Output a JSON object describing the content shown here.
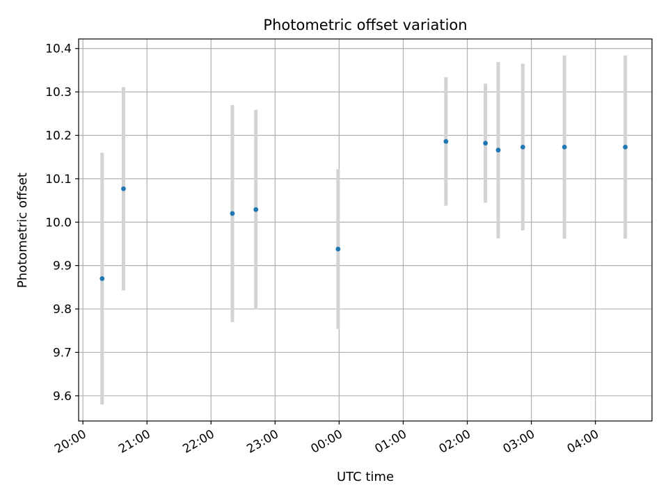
{
  "chart_data": {
    "type": "scatter",
    "title": "Photometric offset variation",
    "xlabel": "UTC time",
    "ylabel": "Photometric offset",
    "x_ticks": [
      "20:00",
      "21:00",
      "22:00",
      "23:00",
      "00:00",
      "01:00",
      "02:00",
      "03:00",
      "04:00"
    ],
    "y_ticks": [
      "9.6",
      "9.7",
      "9.8",
      "9.9",
      "10.0",
      "10.1",
      "10.2",
      "10.3",
      "10.4"
    ],
    "ylim": [
      9.542,
      10.422
    ],
    "xlim": [
      "19:56",
      "04:53"
    ],
    "grid": true,
    "colors": {
      "point": "#1f77b4",
      "errorbar": "#d3d3d3",
      "grid": "#b0b0b0"
    },
    "series": [
      {
        "points": [
          {
            "x": "20:18",
            "y": 9.87,
            "y_low": 9.58,
            "y_high": 10.16
          },
          {
            "x": "20:38",
            "y": 10.077,
            "y_low": 9.843,
            "y_high": 10.311
          },
          {
            "x": "22:20",
            "y": 10.02,
            "y_low": 9.77,
            "y_high": 10.27
          },
          {
            "x": "22:42",
            "y": 10.029,
            "y_low": 9.799,
            "y_high": 10.259
          },
          {
            "x": "23:59",
            "y": 9.938,
            "y_low": 9.754,
            "y_high": 10.122
          },
          {
            "x": "01:40",
            "y": 10.186,
            "y_low": 10.038,
            "y_high": 10.334
          },
          {
            "x": "02:17",
            "y": 10.182,
            "y_low": 10.045,
            "y_high": 10.319
          },
          {
            "x": "02:29",
            "y": 10.166,
            "y_low": 9.963,
            "y_high": 10.369
          },
          {
            "x": "02:52",
            "y": 10.173,
            "y_low": 9.981,
            "y_high": 10.365
          },
          {
            "x": "03:31",
            "y": 10.173,
            "y_low": 9.962,
            "y_high": 10.384
          },
          {
            "x": "04:28",
            "y": 10.173,
            "y_low": 9.962,
            "y_high": 10.384
          }
        ]
      }
    ]
  }
}
